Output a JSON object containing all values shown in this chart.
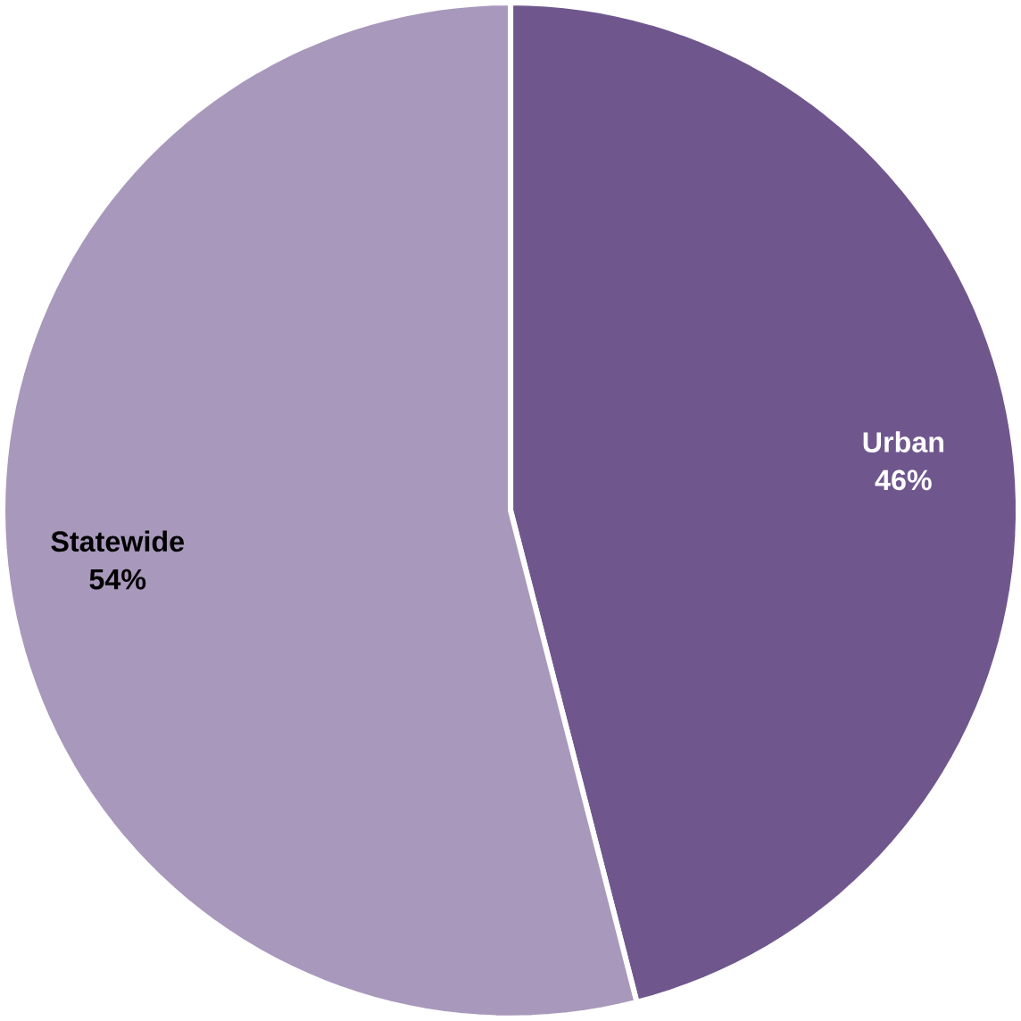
{
  "chart_data": {
    "type": "pie",
    "categories": [
      "Urban",
      "Statewide"
    ],
    "values": [
      46,
      54
    ],
    "value_labels": [
      "46%",
      "54%"
    ],
    "colors": [
      "#6f578e",
      "#a898bb"
    ]
  }
}
